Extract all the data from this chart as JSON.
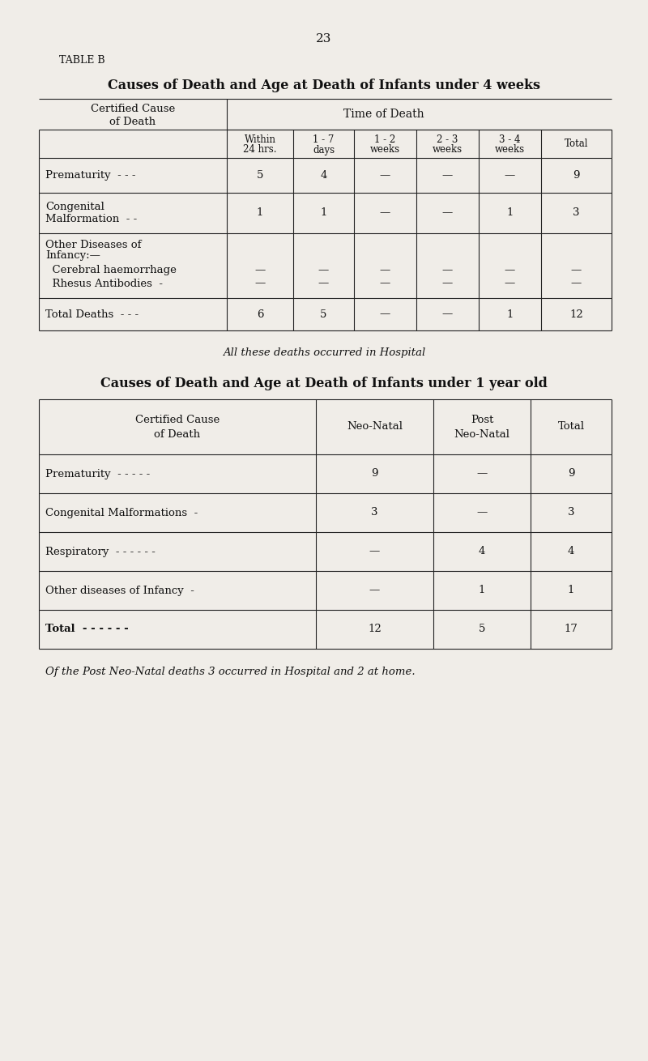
{
  "page_number": "23",
  "table_note": "TABLE B",
  "bg_color": "#f0ede8",
  "table1": {
    "title": "Causes of Death and Age at Death of Infants under 4 weeks",
    "footnote": "All these deaths occurred in Hospital"
  },
  "table2": {
    "title": "Causes of Death and Age at Death of Infants under 1 year old",
    "footnote": "Of the Post Neo-Natal deaths 3 occurred in Hospital and 2 at home."
  },
  "figsize": [
    8.0,
    13.1
  ],
  "dpi": 100
}
